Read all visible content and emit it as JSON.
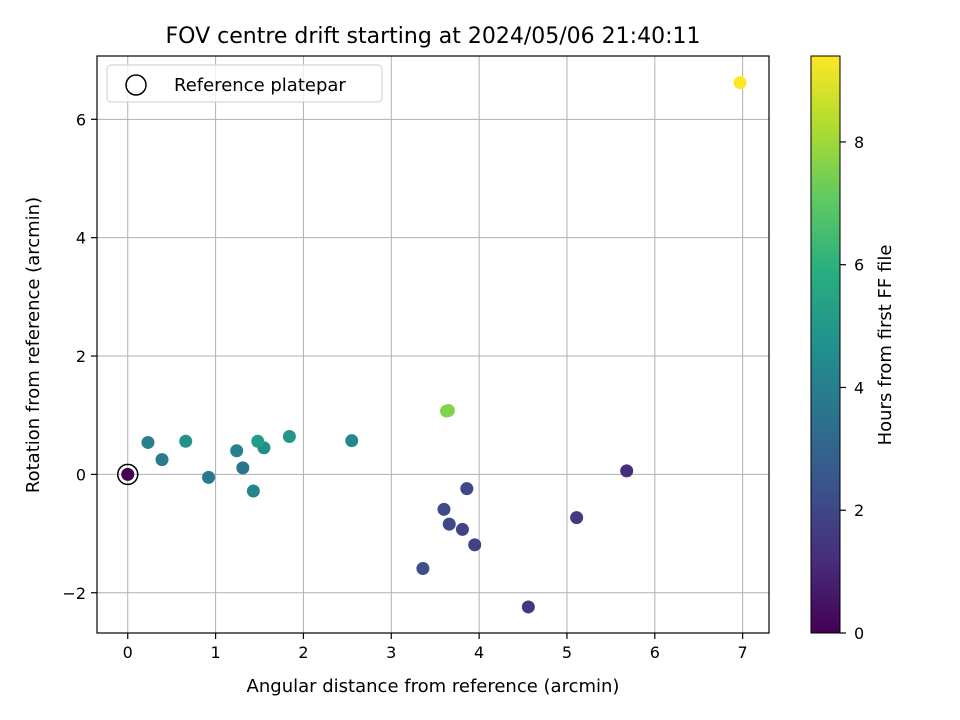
{
  "chart_data": {
    "type": "scatter",
    "title": "FOV centre drift starting at 2024/05/06 21:40:11",
    "xlabel": "Angular distance from reference (arcmin)",
    "ylabel": "Rotation from reference (arcmin)",
    "xlim": [
      -0.35,
      7.3
    ],
    "ylim": [
      -2.68,
      7.07
    ],
    "x_ticks": [
      0,
      1,
      2,
      3,
      4,
      5,
      6,
      7
    ],
    "y_ticks": [
      -2,
      0,
      2,
      4,
      6
    ],
    "x_tick_labels": [
      "0",
      "1",
      "2",
      "3",
      "4",
      "5",
      "6",
      "7"
    ],
    "y_tick_labels": [
      "−2",
      "0",
      "2",
      "4",
      "6"
    ],
    "grid": true,
    "legend": {
      "position": "top-left",
      "entries": [
        {
          "label": "Reference platepar",
          "marker": "open-circle"
        }
      ]
    },
    "reference_point": {
      "x": 0,
      "y": 0
    },
    "colorbar": {
      "label": "Hours from first FF file",
      "colormap": "viridis",
      "range": [
        0,
        9.4
      ],
      "ticks": [
        0,
        2,
        4,
        6,
        8
      ],
      "tick_labels": [
        "0",
        "2",
        "4",
        "6",
        "8"
      ]
    },
    "series": [
      {
        "points": [
          {
            "x": 0.0,
            "y": 0.0,
            "hours": 0.0
          },
          {
            "x": 5.68,
            "y": 0.06,
            "hours": 1.2
          },
          {
            "x": 4.56,
            "y": -2.24,
            "hours": 1.5
          },
          {
            "x": 5.11,
            "y": -0.73,
            "hours": 1.6
          },
          {
            "x": 3.95,
            "y": -1.19,
            "hours": 1.8
          },
          {
            "x": 3.81,
            "y": -0.93,
            "hours": 1.9
          },
          {
            "x": 3.86,
            "y": -0.24,
            "hours": 2.0
          },
          {
            "x": 3.66,
            "y": -0.84,
            "hours": 2.1
          },
          {
            "x": 3.6,
            "y": -0.59,
            "hours": 2.2
          },
          {
            "x": 3.36,
            "y": -1.59,
            "hours": 2.3
          },
          {
            "x": 1.31,
            "y": 0.11,
            "hours": 3.6
          },
          {
            "x": 0.92,
            "y": -0.05,
            "hours": 3.8
          },
          {
            "x": 0.39,
            "y": 0.25,
            "hours": 3.9
          },
          {
            "x": 0.23,
            "y": 0.54,
            "hours": 4.0
          },
          {
            "x": 1.24,
            "y": 0.4,
            "hours": 4.1
          },
          {
            "x": 1.43,
            "y": -0.28,
            "hours": 4.3
          },
          {
            "x": 2.55,
            "y": 0.57,
            "hours": 4.4
          },
          {
            "x": 1.55,
            "y": 0.45,
            "hours": 4.6
          },
          {
            "x": 0.66,
            "y": 0.56,
            "hours": 4.8
          },
          {
            "x": 1.84,
            "y": 0.64,
            "hours": 5.0
          },
          {
            "x": 1.48,
            "y": 0.56,
            "hours": 5.2
          },
          {
            "x": 3.63,
            "y": 1.07,
            "hours": 7.4
          },
          {
            "x": 3.65,
            "y": 1.08,
            "hours": 7.6
          },
          {
            "x": 6.97,
            "y": 6.62,
            "hours": 9.4
          }
        ]
      }
    ]
  }
}
